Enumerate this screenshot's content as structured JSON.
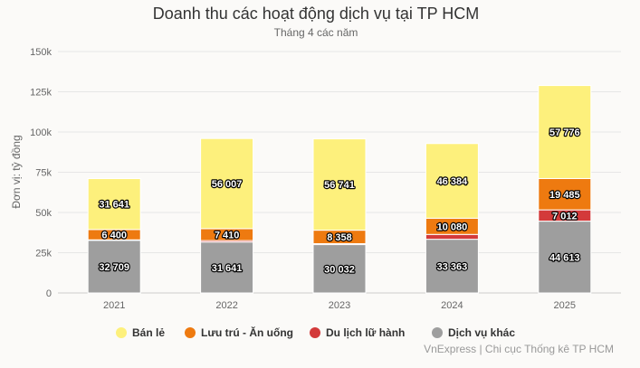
{
  "chart_data": {
    "type": "bar",
    "stacked": true,
    "title": "Doanh thu các hoạt động dịch vụ tại TP HCM",
    "subtitle": "Tháng 4 các năm",
    "ylabel": "Đơn vị: tỷ đồng",
    "xlabel": "",
    "ylim": [
      0,
      150000
    ],
    "yticks": [
      0,
      25000,
      50000,
      75000,
      100000,
      125000,
      150000
    ],
    "ytick_labels": [
      "0",
      "25k",
      "50k",
      "75k",
      "100k",
      "125k",
      "150k"
    ],
    "grid": true,
    "legend_position": "bottom",
    "categories": [
      "2021",
      "2022",
      "2023",
      "2024",
      "2025"
    ],
    "series": [
      {
        "name": "Dịch vụ khác",
        "color": "#9e9e9e",
        "values": [
          32709,
          31641,
          30032,
          33363,
          44613
        ],
        "labels": [
          "32 709",
          "31 641",
          "30 032",
          "33 363",
          "44 613"
        ]
      },
      {
        "name": "Du lịch lữ hành",
        "color": "#d33a3a",
        "values": [
          300,
          900,
          600,
          3000,
          7012
        ],
        "labels": [
          "",
          "",
          "",
          "",
          "7 012"
        ]
      },
      {
        "name": "Lưu trú - Ăn uống",
        "color": "#ee7a10",
        "values": [
          6400,
          7410,
          8358,
          10080,
          19485
        ],
        "labels": [
          "6 400",
          "7 410",
          "8 358",
          "10 080",
          "19 485"
        ]
      },
      {
        "name": "Bán lẻ",
        "color": "#fdf07c",
        "values": [
          31641,
          56007,
          56741,
          46384,
          57776
        ],
        "labels": [
          "31 641",
          "56 007",
          "56 741",
          "46 384",
          "57 776"
        ]
      }
    ],
    "legend_order": [
      "Bán lẻ",
      "Lưu trú - Ăn uống",
      "Du lịch lữ hành",
      "Dịch vụ khác"
    ]
  },
  "source": "VnExpress | Chi cục Thống kê TP HCM"
}
